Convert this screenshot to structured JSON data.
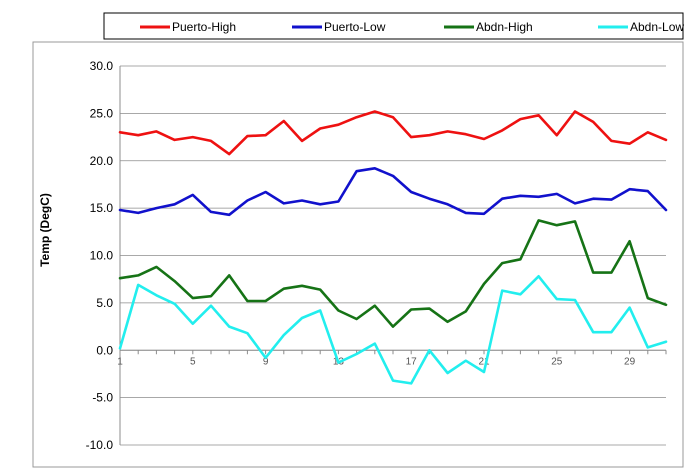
{
  "chart_data": {
    "type": "line",
    "title": "",
    "xlabel": "",
    "ylabel": "Temp (DegC)",
    "ylim": [
      -10,
      30
    ],
    "yticks": [
      -10,
      -5,
      0,
      5,
      10,
      15,
      20,
      25,
      30
    ],
    "ytick_labels": [
      "-10.0",
      "-5.0",
      "0.0",
      "5.0",
      "10.0",
      "15.0",
      "20.0",
      "25.0",
      "30.0"
    ],
    "x": [
      1,
      2,
      3,
      4,
      5,
      6,
      7,
      8,
      9,
      10,
      11,
      12,
      13,
      14,
      15,
      16,
      17,
      18,
      19,
      20,
      21,
      22,
      23,
      24,
      25,
      26,
      27,
      28,
      29,
      30,
      31
    ],
    "xtick_labels": [
      "1",
      "5",
      "9",
      "13",
      "17",
      "21",
      "25",
      "29"
    ],
    "xtick_values": [
      1,
      5,
      9,
      13,
      17,
      21,
      25,
      29
    ],
    "grid": "horizontal",
    "legend_position": "top",
    "series": [
      {
        "name": "Puerto-High",
        "color": "#ee1111",
        "values": [
          23.0,
          22.7,
          23.1,
          22.2,
          22.5,
          22.1,
          20.7,
          22.6,
          22.7,
          24.2,
          22.1,
          23.4,
          23.8,
          24.6,
          25.2,
          24.6,
          22.5,
          22.7,
          23.1,
          22.8,
          22.3,
          23.2,
          24.4,
          24.8,
          22.7,
          25.2,
          24.1,
          22.1,
          21.8,
          23.0,
          22.2
        ]
      },
      {
        "name": "Puerto-Low",
        "color": "#1111cc",
        "values": [
          14.8,
          14.5,
          15.0,
          15.4,
          16.4,
          14.6,
          14.3,
          15.8,
          16.7,
          15.5,
          15.8,
          15.4,
          15.7,
          18.9,
          19.2,
          18.4,
          16.7,
          16.0,
          15.4,
          14.5,
          14.4,
          16.0,
          16.3,
          16.2,
          16.5,
          15.5,
          16.0,
          15.9,
          17.0,
          16.8,
          14.8
        ]
      },
      {
        "name": "Abdn-High",
        "color": "#167316",
        "values": [
          7.6,
          7.9,
          8.8,
          7.3,
          5.5,
          5.7,
          7.9,
          5.2,
          5.2,
          6.5,
          6.8,
          6.4,
          4.2,
          3.3,
          4.7,
          2.5,
          4.3,
          4.4,
          3.0,
          4.1,
          7.0,
          9.2,
          9.6,
          13.7,
          13.2,
          13.6,
          8.2,
          8.2,
          11.5,
          5.5,
          4.8
        ]
      },
      {
        "name": "Abdn-Low",
        "color": "#22eeee",
        "values": [
          0.2,
          6.9,
          5.8,
          4.9,
          2.8,
          4.7,
          2.5,
          1.8,
          -0.8,
          1.6,
          3.4,
          4.2,
          -1.3,
          -0.4,
          0.7,
          -3.2,
          -3.5,
          0.0,
          -2.4,
          -1.1,
          -2.3,
          6.3,
          5.9,
          7.8,
          5.4,
          5.3,
          1.9,
          1.9,
          4.5,
          0.3,
          0.9
        ]
      }
    ]
  }
}
